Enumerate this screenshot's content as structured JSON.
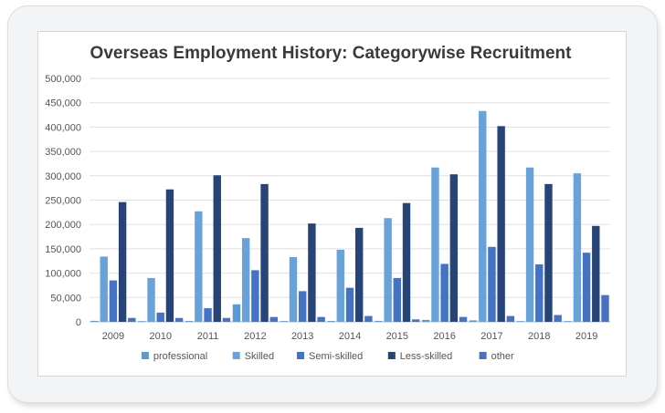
{
  "chart_data": {
    "type": "bar",
    "title": "Overseas Employment History: Categorywise Recruitment",
    "categories": [
      "2009",
      "2010",
      "2011",
      "2012",
      "2013",
      "2014",
      "2015",
      "2016",
      "2017",
      "2018",
      "2019"
    ],
    "series": [
      {
        "name": "professional",
        "color": "#5b9bd5",
        "values": [
          2000,
          1500,
          1800,
          36000,
          1600,
          1800,
          2000,
          4000,
          3000,
          1500,
          1500
        ]
      },
      {
        "name": "Skilled",
        "color": "#69a2d8",
        "values": [
          134000,
          90000,
          227000,
          172000,
          133000,
          148000,
          213000,
          317000,
          433000,
          317000,
          305000
        ]
      },
      {
        "name": "Semi-skilled",
        "color": "#4472c4",
        "values": [
          85000,
          19000,
          28000,
          106000,
          63000,
          70000,
          90000,
          119000,
          154000,
          118000,
          142000
        ]
      },
      {
        "name": "Less-skilled",
        "color": "#264478",
        "values": [
          246000,
          272000,
          301000,
          283000,
          202000,
          193000,
          244000,
          303000,
          402000,
          283000,
          197000
        ]
      },
      {
        "name": "other",
        "color": "#4a70c0",
        "values": [
          8000,
          8000,
          8000,
          10000,
          10000,
          12000,
          5000,
          10000,
          12000,
          14000,
          55000
        ]
      }
    ],
    "ylim": [
      0,
      500000
    ],
    "yticks": [
      "0",
      "50,000",
      "100,000",
      "150,000",
      "200,000",
      "250,000",
      "300,000",
      "350,000",
      "400,000",
      "450,000",
      "500,000"
    ],
    "grid": true,
    "legend": "bottom"
  }
}
